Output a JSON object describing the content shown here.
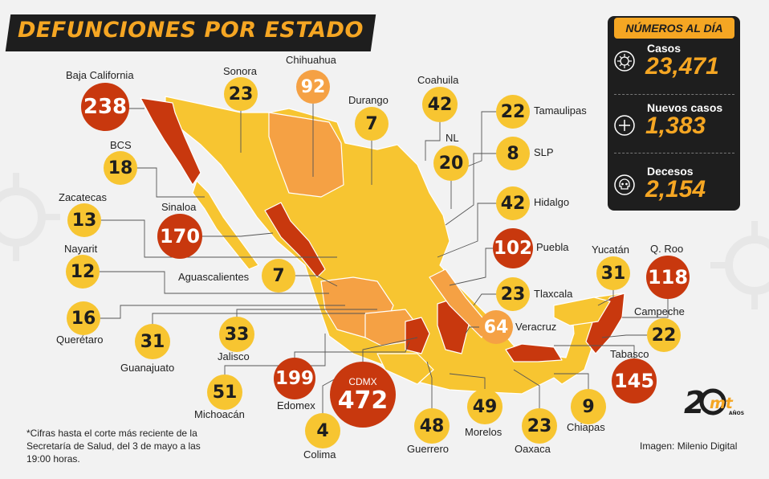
{
  "title": "DEFUNCIONES POR ESTADO",
  "summary": {
    "heading": "NÚMEROS AL DÍA",
    "items": [
      {
        "label": "Casos",
        "value": "23,471",
        "icon": "virus-icon"
      },
      {
        "label": "Nuevos casos",
        "value": "1,383",
        "icon": "plus-icon"
      },
      {
        "label": "Decesos",
        "value": "2,154",
        "icon": "skull-icon"
      }
    ]
  },
  "states": [
    {
      "name": "Baja California",
      "value": "238"
    },
    {
      "name": "Sonora",
      "value": "23"
    },
    {
      "name": "Chihuahua",
      "value": "92"
    },
    {
      "name": "Coahuila",
      "value": "42"
    },
    {
      "name": "Durango",
      "value": "7"
    },
    {
      "name": "Tamaulipas",
      "value": "22"
    },
    {
      "name": "NL",
      "value": "20"
    },
    {
      "name": "SLP",
      "value": "8"
    },
    {
      "name": "BCS",
      "value": "18"
    },
    {
      "name": "Zacatecas",
      "value": "13"
    },
    {
      "name": "Sinaloa",
      "value": "170"
    },
    {
      "name": "Hidalgo",
      "value": "42"
    },
    {
      "name": "Nayarit",
      "value": "12"
    },
    {
      "name": "Aguascalientes",
      "value": "7"
    },
    {
      "name": "Puebla",
      "value": "102"
    },
    {
      "name": "Yucatán",
      "value": "31"
    },
    {
      "name": "Q. Roo",
      "value": "118"
    },
    {
      "name": "Querétaro",
      "value": "16"
    },
    {
      "name": "Tlaxcala",
      "value": "23"
    },
    {
      "name": "Guanajuato",
      "value": "31"
    },
    {
      "name": "Jalisco",
      "value": "33"
    },
    {
      "name": "Veracruz",
      "value": "64"
    },
    {
      "name": "Campeche",
      "value": "22"
    },
    {
      "name": "Tabasco",
      "value": "145"
    },
    {
      "name": "Michoacán",
      "value": "51"
    },
    {
      "name": "Edomex",
      "value": "199"
    },
    {
      "name": "CDMX",
      "value": "472"
    },
    {
      "name": "Colima",
      "value": "4"
    },
    {
      "name": "Guerrero",
      "value": "48"
    },
    {
      "name": "Morelos",
      "value": "49"
    },
    {
      "name": "Oaxaca",
      "value": "23"
    },
    {
      "name": "Chiapas",
      "value": "9"
    }
  ],
  "colors": {
    "low": "#f7c531",
    "mid": "#f5a144",
    "high": "#c8380e",
    "dark": "#1e1e1e",
    "accent": "#f5a623"
  },
  "footnote": "*Cifras hasta el corte más reciente de la Secretaría de Salud, del 3 de mayo a las 19:00 horas.",
  "credit": "Imagen: Milenio Digital",
  "logo": {
    "number": "20",
    "brand": "mt",
    "sub": "AÑOS"
  }
}
